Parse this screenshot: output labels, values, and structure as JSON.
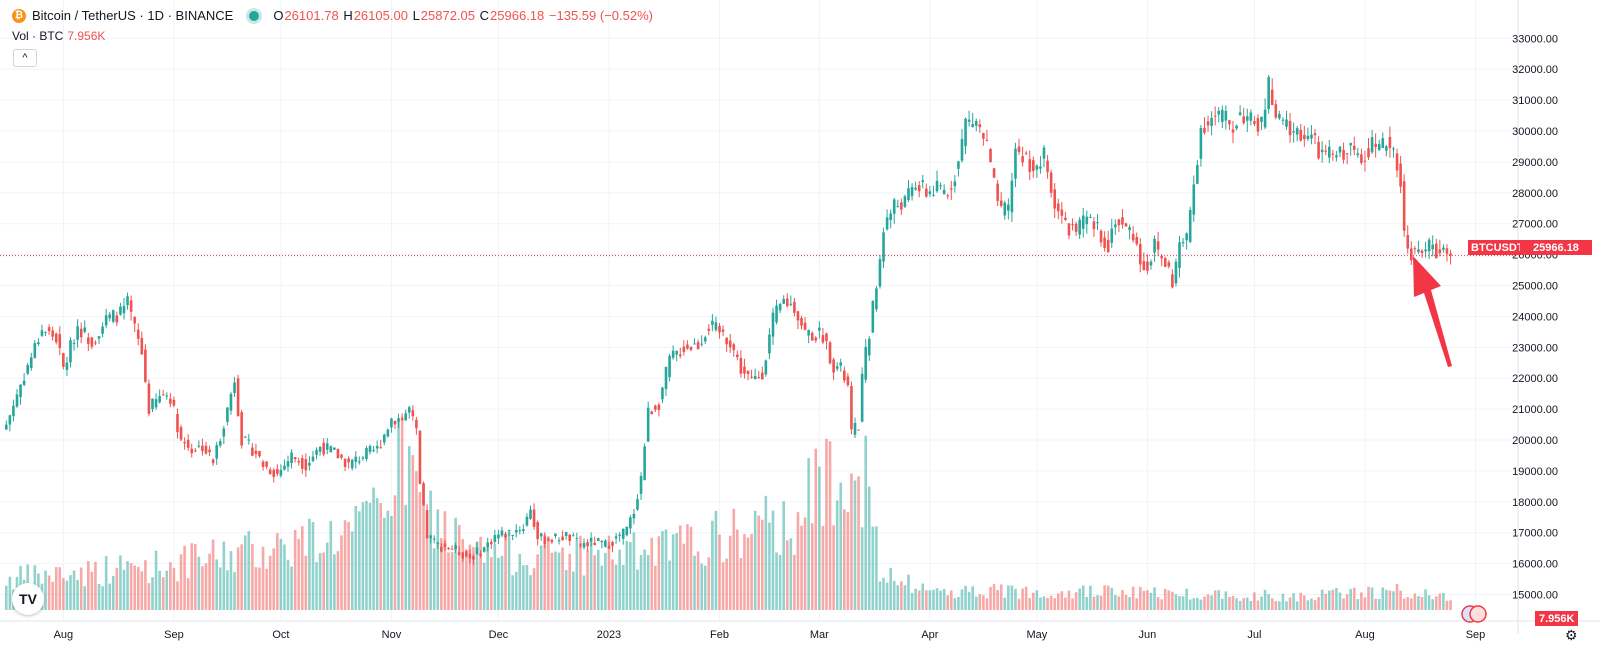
{
  "header": {
    "symbol": "Bitcoin / TetherUS · 1D · BINANCE",
    "open_label": "O",
    "open": "26101.78",
    "high_label": "H",
    "high": "26105.00",
    "low_label": "L",
    "low": "25872.05",
    "close_label": "C",
    "close": "25966.18",
    "change": "−135.59 (−0.52%)"
  },
  "volume": {
    "label": "Vol · BTC",
    "value": "7.956K"
  },
  "price_tag": {
    "symbol": "BTCUSDT",
    "value": "25966.18"
  },
  "vol_tag": "7.956K",
  "colors": {
    "up": "#26a69a",
    "down": "#ef5350",
    "arrow": "#f23645"
  },
  "icons": {
    "logo": "tradingview-logo-icon",
    "settings": "gear-icon",
    "collapse": "chevron-up-icon",
    "live": "live-dot-icon"
  },
  "chart_data": {
    "type": "candlestick",
    "y_ticks": [
      15000,
      16000,
      17000,
      18000,
      19000,
      20000,
      21000,
      22000,
      23000,
      24000,
      25000,
      26000,
      27000,
      28000,
      29000,
      30000,
      31000,
      32000,
      33000
    ],
    "y_tick_labels": [
      "15000.00",
      "16000.00",
      "17000.00",
      "18000.00",
      "19000.00",
      "20000.00",
      "21000.00",
      "22000.00",
      "23000.00",
      "24000.00",
      "25000.00",
      "26000.00",
      "27000.00",
      "28000.00",
      "29000.00",
      "30000.00",
      "31000.00",
      "32000.00",
      "33000.00"
    ],
    "ylim": [
      14500,
      33300
    ],
    "x_labels": [
      {
        "label": "Aug",
        "day": 16
      },
      {
        "label": "Sep",
        "day": 47
      },
      {
        "label": "Oct",
        "day": 77
      },
      {
        "label": "Nov",
        "day": 108
      },
      {
        "label": "Dec",
        "day": 138
      },
      {
        "label": "2023",
        "day": 169
      },
      {
        "label": "Feb",
        "day": 200
      },
      {
        "label": "Mar",
        "day": 228
      },
      {
        "label": "Apr",
        "day": 259
      },
      {
        "label": "May",
        "day": 289
      },
      {
        "label": "Jun",
        "day": 320
      },
      {
        "label": "Jul",
        "day": 350
      },
      {
        "label": "Aug",
        "day": 381
      },
      {
        "label": "Sep",
        "day": 412
      }
    ],
    "last_price": 25966.18,
    "close_anchors": [
      [
        0,
        20500
      ],
      [
        4,
        21800
      ],
      [
        10,
        23600
      ],
      [
        14,
        23300
      ],
      [
        16,
        22300
      ],
      [
        20,
        23700
      ],
      [
        24,
        23200
      ],
      [
        28,
        23900
      ],
      [
        32,
        24100
      ],
      [
        34,
        24400
      ],
      [
        38,
        22800
      ],
      [
        40,
        21000
      ],
      [
        44,
        21500
      ],
      [
        46,
        21400
      ],
      [
        49,
        20000
      ],
      [
        52,
        19700
      ],
      [
        55,
        19800
      ],
      [
        58,
        19300
      ],
      [
        62,
        21000
      ],
      [
        64,
        22000
      ],
      [
        66,
        20000
      ],
      [
        70,
        19600
      ],
      [
        72,
        19200
      ],
      [
        76,
        18900
      ],
      [
        80,
        19500
      ],
      [
        84,
        19200
      ],
      [
        88,
        19800
      ],
      [
        92,
        19600
      ],
      [
        96,
        19200
      ],
      [
        100,
        19500
      ],
      [
        104,
        19700
      ],
      [
        108,
        20700
      ],
      [
        111,
        20700
      ],
      [
        113,
        21000
      ],
      [
        115,
        20200
      ],
      [
        116,
        18500
      ],
      [
        118,
        16900
      ],
      [
        121,
        16600
      ],
      [
        125,
        16500
      ],
      [
        130,
        16200
      ],
      [
        134,
        16500
      ],
      [
        137,
        16900
      ],
      [
        141,
        17000
      ],
      [
        145,
        17200
      ],
      [
        147,
        17800
      ],
      [
        149,
        16800
      ],
      [
        153,
        16800
      ],
      [
        157,
        16900
      ],
      [
        161,
        16600
      ],
      [
        165,
        16700
      ],
      [
        168,
        16600
      ],
      [
        171,
        16800
      ],
      [
        174,
        17100
      ],
      [
        176,
        17700
      ],
      [
        178,
        18800
      ],
      [
        180,
        20900
      ],
      [
        183,
        21200
      ],
      [
        186,
        22600
      ],
      [
        190,
        23000
      ],
      [
        194,
        23100
      ],
      [
        197,
        23700
      ],
      [
        200,
        23500
      ],
      [
        203,
        23200
      ],
      [
        206,
        22300
      ],
      [
        209,
        21900
      ],
      [
        212,
        22200
      ],
      [
        215,
        23900
      ],
      [
        218,
        24500
      ],
      [
        221,
        24300
      ],
      [
        224,
        23500
      ],
      [
        226,
        23400
      ],
      [
        229,
        23400
      ],
      [
        232,
        22400
      ],
      [
        234,
        22300
      ],
      [
        236,
        21700
      ],
      [
        237,
        20200
      ],
      [
        239,
        20500
      ],
      [
        240,
        22000
      ],
      [
        243,
        24300
      ],
      [
        244,
        24900
      ],
      [
        246,
        26900
      ],
      [
        249,
        27600
      ],
      [
        252,
        27700
      ],
      [
        255,
        28300
      ],
      [
        258,
        28000
      ],
      [
        261,
        28100
      ],
      [
        264,
        28000
      ],
      [
        267,
        29000
      ],
      [
        269,
        30300
      ],
      [
        272,
        30300
      ],
      [
        275,
        29500
      ],
      [
        277,
        28200
      ],
      [
        279,
        27300
      ],
      [
        281,
        27500
      ],
      [
        283,
        29400
      ],
      [
        286,
        29100
      ],
      [
        289,
        28700
      ],
      [
        291,
        29200
      ],
      [
        293,
        28000
      ],
      [
        295,
        27500
      ],
      [
        297,
        26900
      ],
      [
        300,
        26800
      ],
      [
        303,
        27100
      ],
      [
        306,
        26800
      ],
      [
        309,
        26300
      ],
      [
        311,
        27200
      ],
      [
        313,
        26900
      ],
      [
        316,
        26700
      ],
      [
        318,
        25800
      ],
      [
        320,
        25600
      ],
      [
        322,
        26300
      ],
      [
        324,
        25900
      ],
      [
        326,
        25500
      ],
      [
        327,
        25100
      ],
      [
        329,
        26300
      ],
      [
        331,
        26500
      ],
      [
        333,
        28300
      ],
      [
        335,
        30100
      ],
      [
        338,
        30400
      ],
      [
        341,
        30500
      ],
      [
        344,
        30100
      ],
      [
        346,
        30600
      ],
      [
        349,
        30300
      ],
      [
        352,
        30200
      ],
      [
        354,
        31500
      ],
      [
        356,
        30300
      ],
      [
        358,
        30300
      ],
      [
        360,
        30000
      ],
      [
        363,
        29900
      ],
      [
        366,
        29800
      ],
      [
        368,
        29300
      ],
      [
        371,
        29200
      ],
      [
        374,
        29300
      ],
      [
        377,
        29400
      ],
      [
        380,
        29200
      ],
      [
        383,
        29600
      ],
      [
        385,
        29300
      ],
      [
        387,
        29700
      ],
      [
        389,
        29400
      ],
      [
        390,
        29000
      ],
      [
        391,
        28300
      ],
      [
        392,
        26600
      ],
      [
        394,
        26100
      ],
      [
        396,
        26000
      ],
      [
        399,
        26300
      ],
      [
        402,
        26100
      ],
      [
        405,
        25966
      ]
    ],
    "volume_profile": [
      [
        0,
        0.13
      ],
      [
        50,
        0.2
      ],
      [
        100,
        0.34
      ],
      [
        112,
        0.64
      ],
      [
        116,
        0.45
      ],
      [
        130,
        0.24
      ],
      [
        180,
        0.24
      ],
      [
        220,
        0.37
      ],
      [
        236,
        0.68
      ],
      [
        242,
        0.52
      ],
      [
        245,
        0.14
      ],
      [
        260,
        0.08
      ],
      [
        300,
        0.08
      ],
      [
        330,
        0.07
      ],
      [
        360,
        0.06
      ],
      [
        390,
        0.08
      ],
      [
        405,
        0.05
      ]
    ]
  }
}
